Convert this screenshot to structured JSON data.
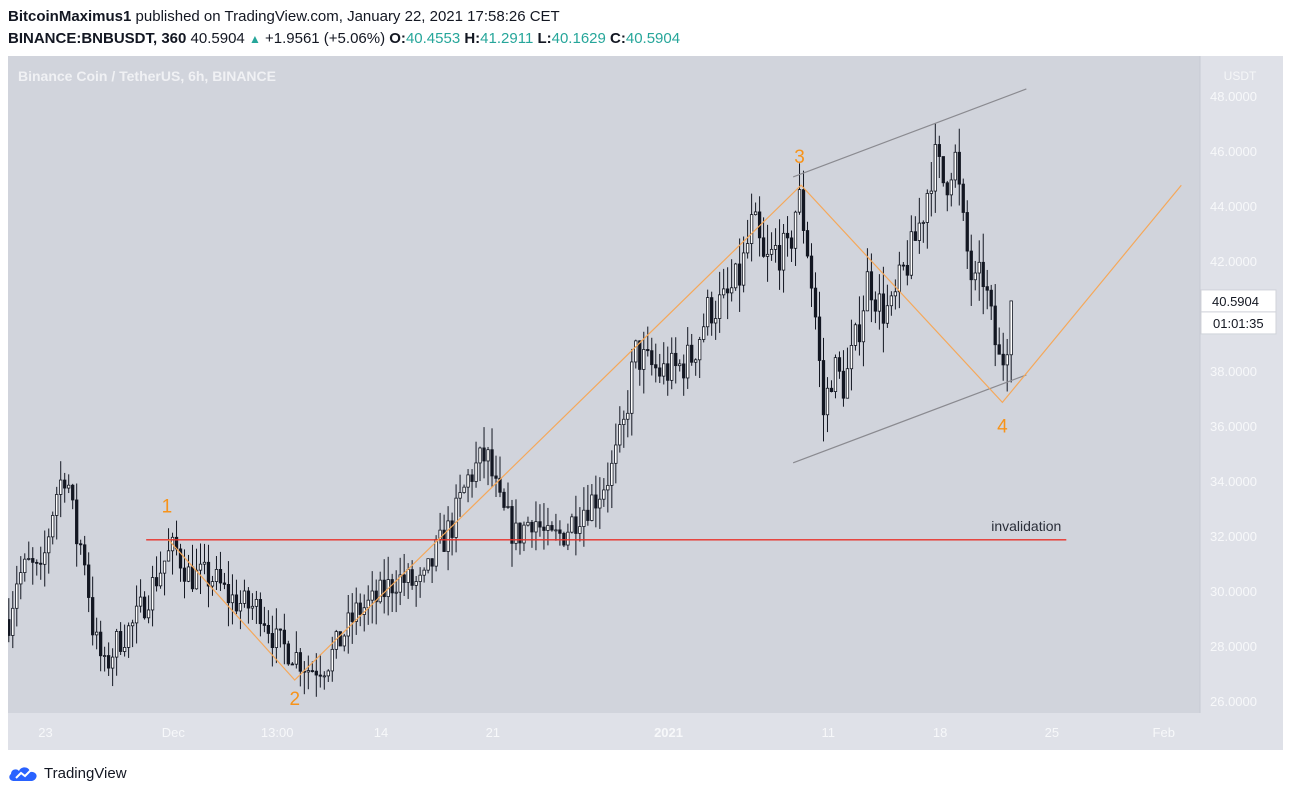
{
  "header": {
    "author": "BitcoinMaximus1",
    "published_text": "published on TradingView.com, January 22, 2021 17:58:26 CET",
    "symbol": "BINANCE:BNBUSDT, 360",
    "last": "40.5904",
    "change": "+1.9561 (+5.06%)",
    "o_label": "O:",
    "o_value": "40.4553",
    "h_label": "H:",
    "h_value": "41.2911",
    "l_label": "L:",
    "l_value": "40.1629",
    "c_label": "C:",
    "c_value": "40.5904"
  },
  "footer": {
    "brand": "TradingView"
  },
  "colors": {
    "chart_bg": "#d1d4dc",
    "axis_bg": "#dfe1e8",
    "candle": "#131722",
    "wave": "#f5a85a",
    "wave_label": "#f7931a",
    "channel": "#8a8a90",
    "invalidation": "#e8322a",
    "price_tag_bg": "#ffffff"
  },
  "chart_data": {
    "type": "candlestick",
    "title": "Binance Coin / TetherUS, 6h, BINANCE",
    "currency_label": "USDT",
    "y_ticks": [
      48,
      46,
      44,
      42,
      40,
      38,
      36,
      34,
      32,
      30,
      28,
      26
    ],
    "y_tick_labels": [
      "48.0000",
      "46.0000",
      "44.0000",
      "42.0000",
      "40.0000",
      "38.0000",
      "36.0000",
      "34.0000",
      "32.0000",
      "30.0000",
      "28.0000",
      "26.0000"
    ],
    "ylim": [
      25.6,
      49.5
    ],
    "x_ticks": [
      {
        "label": "23",
        "day": 0
      },
      {
        "label": "Dec",
        "day": 8
      },
      {
        "label": "13:00",
        "day": 14.5
      },
      {
        "label": "14",
        "day": 21
      },
      {
        "label": "21",
        "day": 28
      },
      {
        "label": "2021",
        "day": 39
      },
      {
        "label": "11",
        "day": 49
      },
      {
        "label": "18",
        "day": 56
      },
      {
        "label": "25",
        "day": 63
      },
      {
        "label": "Feb",
        "day": 70
      }
    ],
    "xlim": [
      -2.35,
      72.27
    ],
    "current_price": {
      "value": 40.5904,
      "label": "40.5904",
      "countdown": "01:01:35"
    },
    "invalidation": {
      "value": 31.9,
      "from_day": 6.3,
      "to_day": 63.9,
      "label": "invalidation"
    },
    "wave_path": [
      {
        "day": 7.7,
        "price": 31.9
      },
      {
        "day": 15.6,
        "price": 26.8
      },
      {
        "day": 47.3,
        "price": 44.8
      },
      {
        "day": 59.9,
        "price": 36.9
      },
      {
        "day": 71.1,
        "price": 44.8
      }
    ],
    "wave_labels": [
      {
        "label": "1",
        "day": 7.6,
        "price": 32.9
      },
      {
        "label": "2",
        "day": 15.6,
        "price": 25.9
      },
      {
        "label": "3",
        "day": 47.2,
        "price": 45.6
      },
      {
        "label": "4",
        "day": 59.9,
        "price": 35.8
      }
    ],
    "channel": [
      {
        "from": {
          "day": 46.8,
          "price": 45.1
        },
        "to": {
          "day": 61.4,
          "price": 48.3
        }
      },
      {
        "from": {
          "day": 46.8,
          "price": 34.7
        },
        "to": {
          "day": 61.4,
          "price": 37.9
        }
      }
    ],
    "price_path": [
      {
        "day": -2.3,
        "price": 29.0
      },
      {
        "day": -1.8,
        "price": 30.5
      },
      {
        "day": -1.0,
        "price": 31.0
      },
      {
        "day": -0.3,
        "price": 30.5
      },
      {
        "day": 0.6,
        "price": 33.5
      },
      {
        "day": 1.3,
        "price": 34.5
      },
      {
        "day": 1.9,
        "price": 32.0
      },
      {
        "day": 2.4,
        "price": 31.5
      },
      {
        "day": 3.0,
        "price": 28.5
      },
      {
        "day": 3.7,
        "price": 27.2
      },
      {
        "day": 4.5,
        "price": 28.2
      },
      {
        "day": 5.5,
        "price": 28.8
      },
      {
        "day": 6.5,
        "price": 30.0
      },
      {
        "day": 7.5,
        "price": 31.2
      },
      {
        "day": 8.1,
        "price": 31.6
      },
      {
        "day": 9.0,
        "price": 30.6
      },
      {
        "day": 10.5,
        "price": 30.5
      },
      {
        "day": 11.5,
        "price": 29.8
      },
      {
        "day": 12.5,
        "price": 29.5
      },
      {
        "day": 13.5,
        "price": 29.4
      },
      {
        "day": 14.4,
        "price": 28.2
      },
      {
        "day": 15.5,
        "price": 27.8
      },
      {
        "day": 16.5,
        "price": 27.2
      },
      {
        "day": 17.6,
        "price": 27.4
      },
      {
        "day": 18.5,
        "price": 28.3
      },
      {
        "day": 19.5,
        "price": 29.3
      },
      {
        "day": 20.5,
        "price": 29.6
      },
      {
        "day": 22.0,
        "price": 30.5
      },
      {
        "day": 23.6,
        "price": 30.2
      },
      {
        "day": 24.5,
        "price": 31.5
      },
      {
        "day": 25.5,
        "price": 32.5
      },
      {
        "day": 26.5,
        "price": 34.2
      },
      {
        "day": 27.6,
        "price": 35.0
      },
      {
        "day": 28.5,
        "price": 33.0
      },
      {
        "day": 29.5,
        "price": 32.0
      },
      {
        "day": 30.5,
        "price": 32.8
      },
      {
        "day": 31.5,
        "price": 31.8
      },
      {
        "day": 32.5,
        "price": 32.2
      },
      {
        "day": 33.5,
        "price": 33.0
      },
      {
        "day": 34.5,
        "price": 33.5
      },
      {
        "day": 35.5,
        "price": 34.5
      },
      {
        "day": 36.2,
        "price": 36.0
      },
      {
        "day": 36.9,
        "price": 38.7
      },
      {
        "day": 37.6,
        "price": 38.3
      },
      {
        "day": 38.5,
        "price": 38.0
      },
      {
        "day": 39.5,
        "price": 38.1
      },
      {
        "day": 40.5,
        "price": 38.6
      },
      {
        "day": 41.5,
        "price": 40.3
      },
      {
        "day": 42.5,
        "price": 40.5
      },
      {
        "day": 43.5,
        "price": 41.5
      },
      {
        "day": 44.3,
        "price": 43.5
      },
      {
        "day": 45.0,
        "price": 41.8
      },
      {
        "day": 45.8,
        "price": 42.5
      },
      {
        "day": 46.5,
        "price": 42.2
      },
      {
        "day": 47.1,
        "price": 44.5
      },
      {
        "day": 47.6,
        "price": 43.0
      },
      {
        "day": 48.2,
        "price": 40.0
      },
      {
        "day": 48.7,
        "price": 36.5
      },
      {
        "day": 49.3,
        "price": 38.2
      },
      {
        "day": 50.0,
        "price": 37.5
      },
      {
        "day": 50.8,
        "price": 39.3
      },
      {
        "day": 51.5,
        "price": 41.5
      },
      {
        "day": 52.3,
        "price": 40.3
      },
      {
        "day": 53.0,
        "price": 40.2
      },
      {
        "day": 53.6,
        "price": 41.5
      },
      {
        "day": 54.3,
        "price": 42.5
      },
      {
        "day": 55.0,
        "price": 44.0
      },
      {
        "day": 55.6,
        "price": 45.8
      },
      {
        "day": 56.3,
        "price": 44.8
      },
      {
        "day": 56.9,
        "price": 46.0
      },
      {
        "day": 57.5,
        "price": 43.0
      },
      {
        "day": 58.1,
        "price": 41.0
      },
      {
        "day": 58.7,
        "price": 41.5
      },
      {
        "day": 59.3,
        "price": 39.5
      },
      {
        "day": 59.8,
        "price": 38.1
      },
      {
        "day": 60.2,
        "price": 39.3
      },
      {
        "day": 60.6,
        "price": 40.5904
      }
    ]
  }
}
